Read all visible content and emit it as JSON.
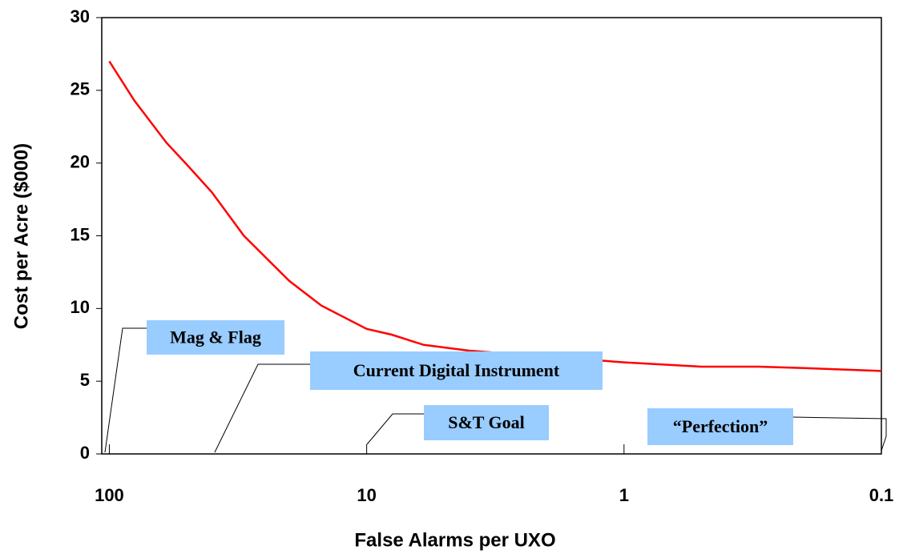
{
  "chart_data": {
    "type": "line",
    "x_label": "False Alarms per UXO",
    "y_label": "Cost per Acre ($000)",
    "x": [
      100,
      80,
      60,
      50,
      40,
      30,
      20,
      15,
      10,
      8,
      6,
      4,
      2,
      1,
      0.5,
      0.3,
      0.2,
      0.1
    ],
    "series": [
      {
        "color": "#ff0000",
        "values": [
          27.0,
          24.3,
          21.4,
          19.9,
          18.0,
          15.0,
          11.9,
          10.2,
          8.6,
          8.2,
          7.5,
          7.1,
          6.7,
          6.3,
          6.0,
          6.0,
          5.9,
          5.7
        ]
      }
    ],
    "xscale": "log",
    "xlim": [
      107,
      0.1
    ],
    "xticks": [
      100,
      10,
      1,
      0.1
    ],
    "ylim": [
      0,
      30
    ],
    "yticks": [
      0,
      5,
      10,
      15,
      20,
      25,
      30
    ],
    "annotations": [
      {
        "text": "Mag & Flag",
        "color": "#99ccff"
      },
      {
        "text": "Current Digital Instrument",
        "color": "#99ccff"
      },
      {
        "text": "S&T Goal",
        "color": "#99ccff"
      },
      {
        "text": "“Perfection”",
        "color": "#99ccff"
      }
    ]
  }
}
